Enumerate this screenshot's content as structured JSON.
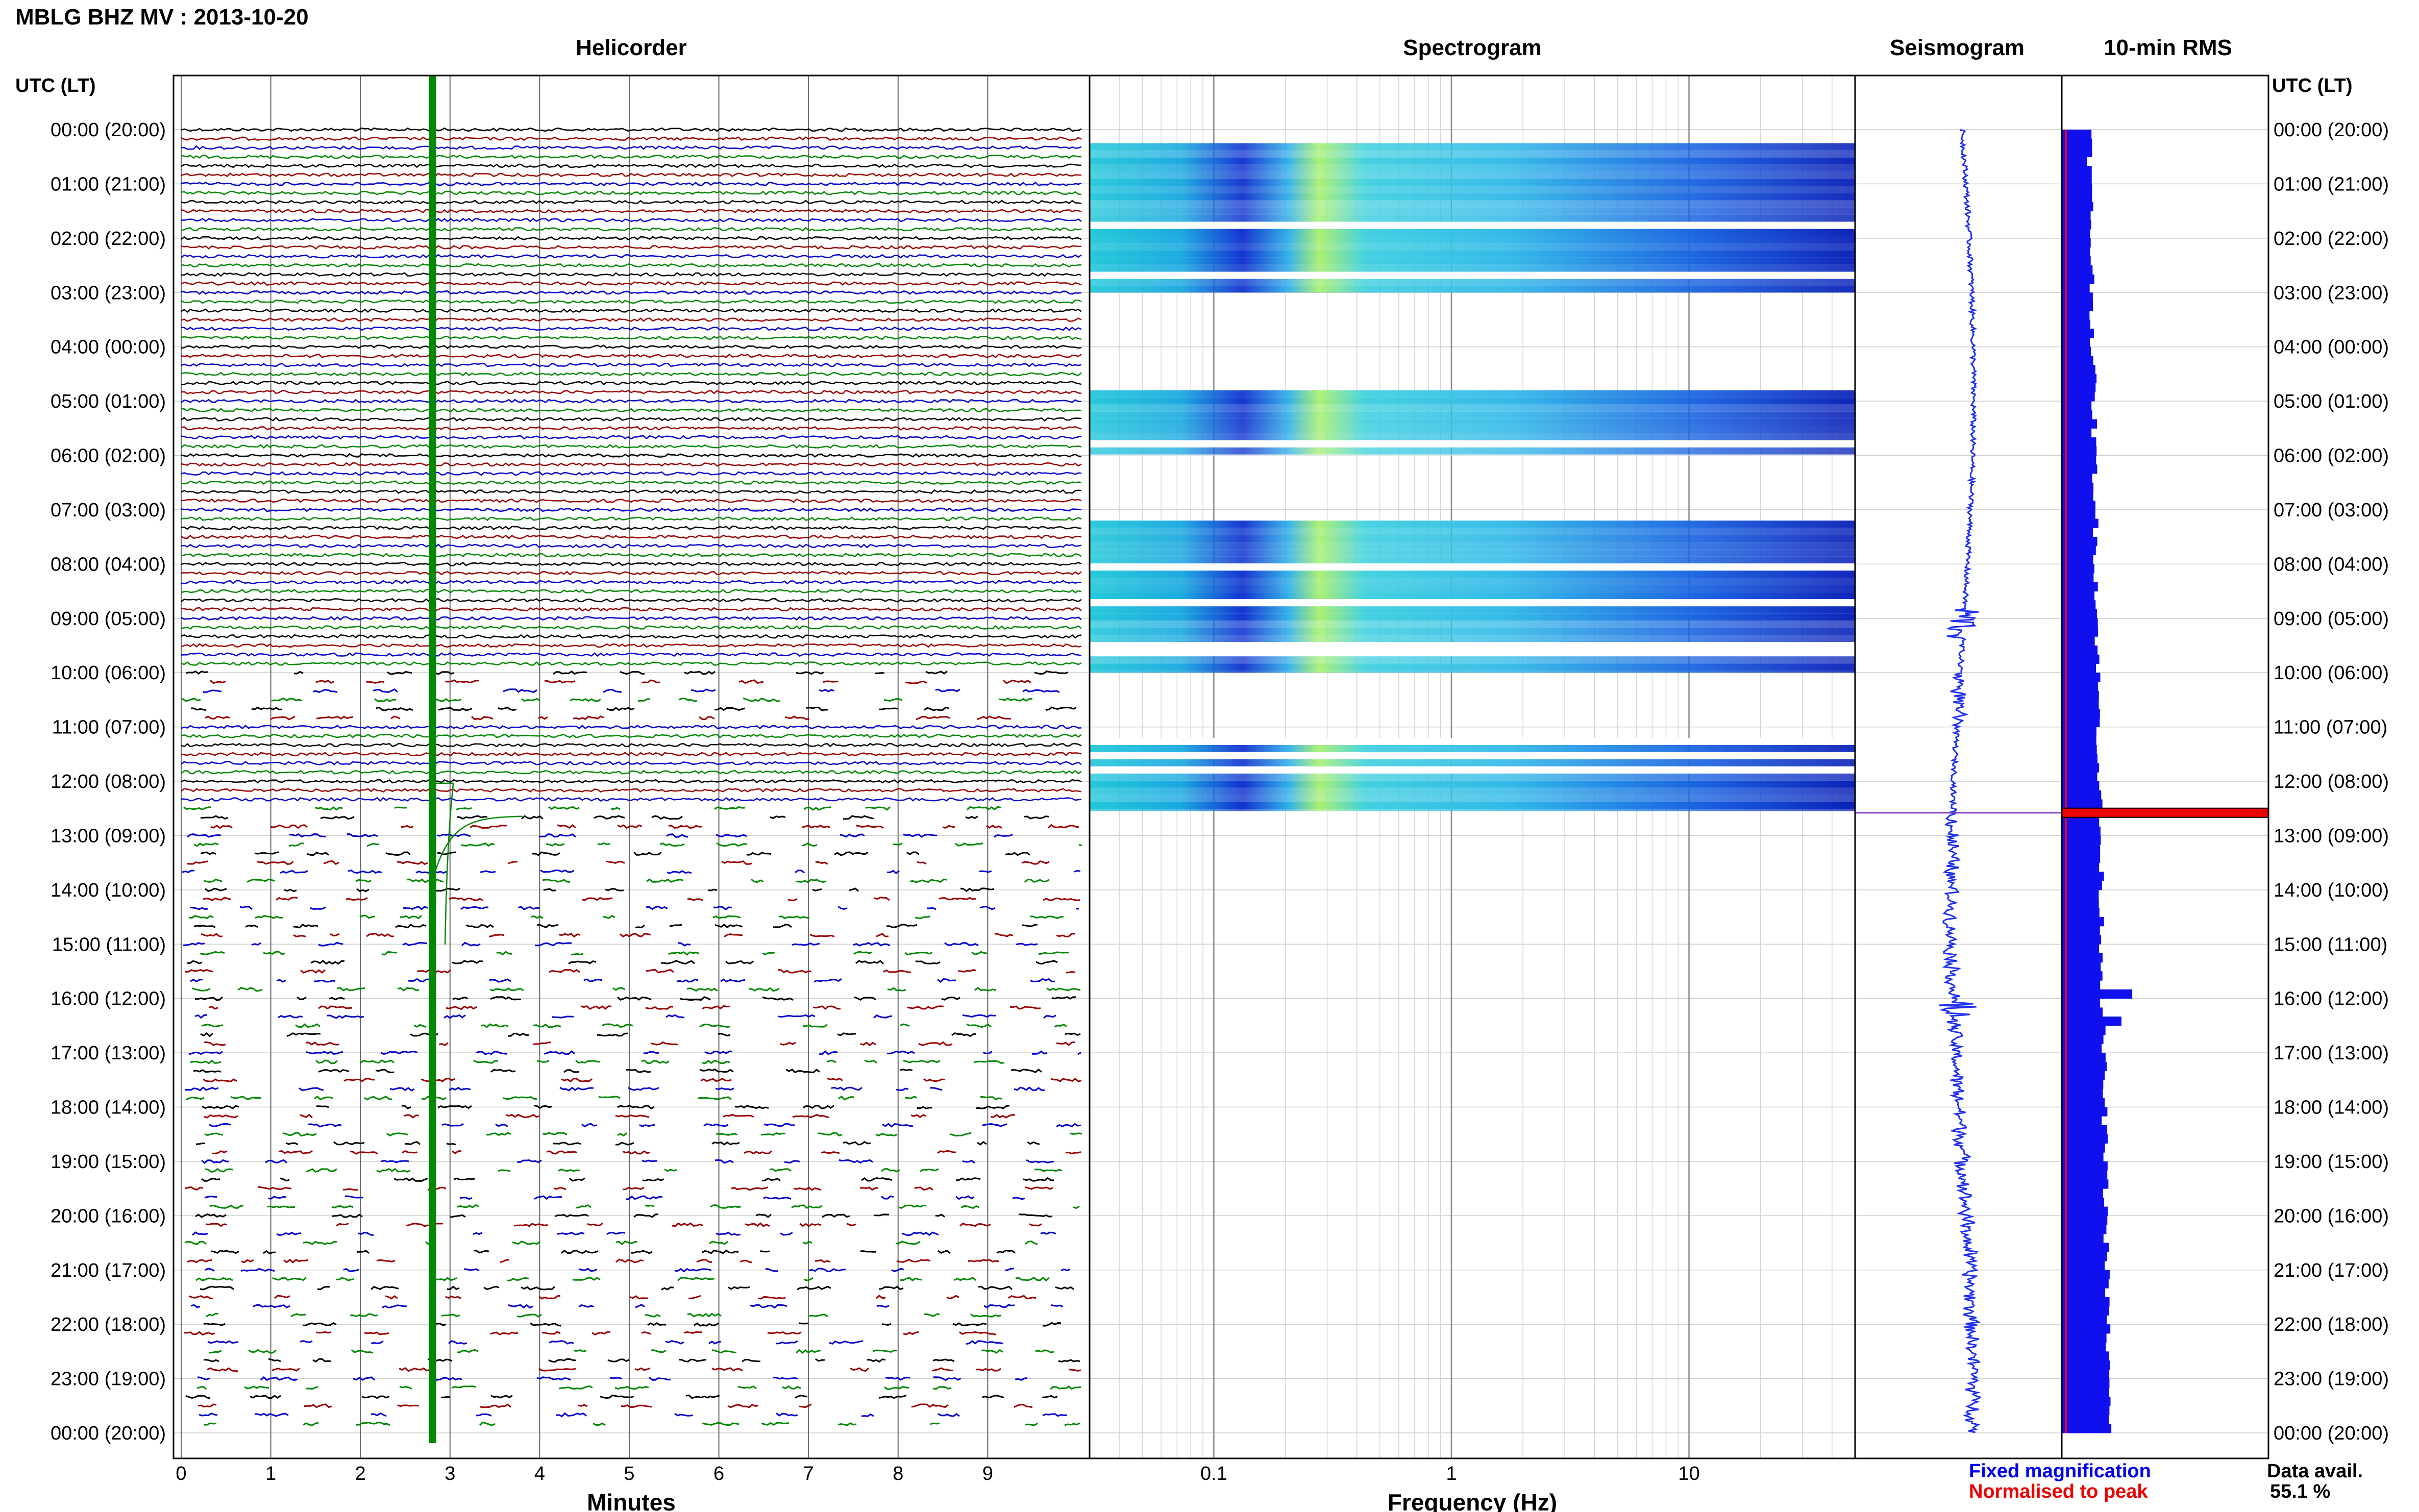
{
  "header": {
    "title": "MBLG BHZ MV : 2013-10-20",
    "left_axis_title": "UTC (LT)",
    "right_axis_title": "UTC (LT)"
  },
  "panels": {
    "helicorder": "Helicorder",
    "spectrogram": "Spectrogram",
    "seismogram": "Seismogram",
    "rms": "10-min RMS"
  },
  "time_labels": [
    "00:00 (20:00)",
    "01:00 (21:00)",
    "02:00 (22:00)",
    "03:00 (23:00)",
    "04:00 (00:00)",
    "05:00 (01:00)",
    "06:00 (02:00)",
    "07:00 (03:00)",
    "08:00 (04:00)",
    "09:00 (05:00)",
    "10:00 (06:00)",
    "11:00 (07:00)",
    "12:00 (08:00)",
    "13:00 (09:00)",
    "14:00 (10:00)",
    "15:00 (11:00)",
    "16:00 (12:00)",
    "17:00 (13:00)",
    "18:00 (14:00)",
    "19:00 (15:00)",
    "20:00 (16:00)",
    "21:00 (17:00)",
    "22:00 (18:00)",
    "23:00 (19:00)",
    "00:00 (20:00)"
  ],
  "footer": {
    "fixed_label": "Fixed magnification",
    "normalised_label": "Normalised to peak",
    "data_avail_label": "Data avail.",
    "data_avail_value": "55.1 %"
  },
  "colors": {
    "trace": [
      "#000000",
      "#990000",
      "#0000cc",
      "#008800"
    ],
    "event": "#008800",
    "rms_bar": "#1010ee",
    "peak": "#ee0000",
    "fixed_text": "#0000ee",
    "normalised_text": "#ee0000"
  },
  "chart_data": [
    {
      "type": "line",
      "name": "helicorder",
      "xlabel": "Minutes",
      "xlim": [
        0,
        10
      ],
      "xticks": [
        0,
        1,
        2,
        3,
        4,
        5,
        6,
        7,
        8,
        9
      ],
      "y_unit": "UTC hour",
      "ylim": [
        0,
        24
      ],
      "trace_lines_per_hour": 6,
      "continuous_data_hours": [
        [
          0,
          10
        ],
        [
          11,
          12.5
        ]
      ],
      "event": {
        "start_hour": 12.6,
        "start_minute": 2.8
      }
    },
    {
      "type": "heatmap",
      "name": "spectrogram",
      "xlabel": "Frequency (Hz)",
      "xscale": "log",
      "xlim": [
        0.03,
        50
      ],
      "xticks": [
        0.1,
        1,
        10
      ],
      "xtick_labels": [
        "0.1",
        "1",
        "10"
      ],
      "ylim": [
        0,
        24
      ],
      "data_hours": [
        [
          0.25,
          3.0
        ],
        [
          4.8,
          6.0
        ],
        [
          7.2,
          10.0
        ],
        [
          11.2,
          12.55
        ]
      ]
    },
    {
      "type": "line",
      "name": "seismogram",
      "ylim": [
        0,
        24
      ],
      "peak_hour": 12.58
    },
    {
      "type": "bar",
      "name": "10-min RMS",
      "ylim": [
        0,
        24
      ],
      "peak_hour": 12.58,
      "highlight_hours": [
        15.8,
        16.2
      ]
    }
  ]
}
